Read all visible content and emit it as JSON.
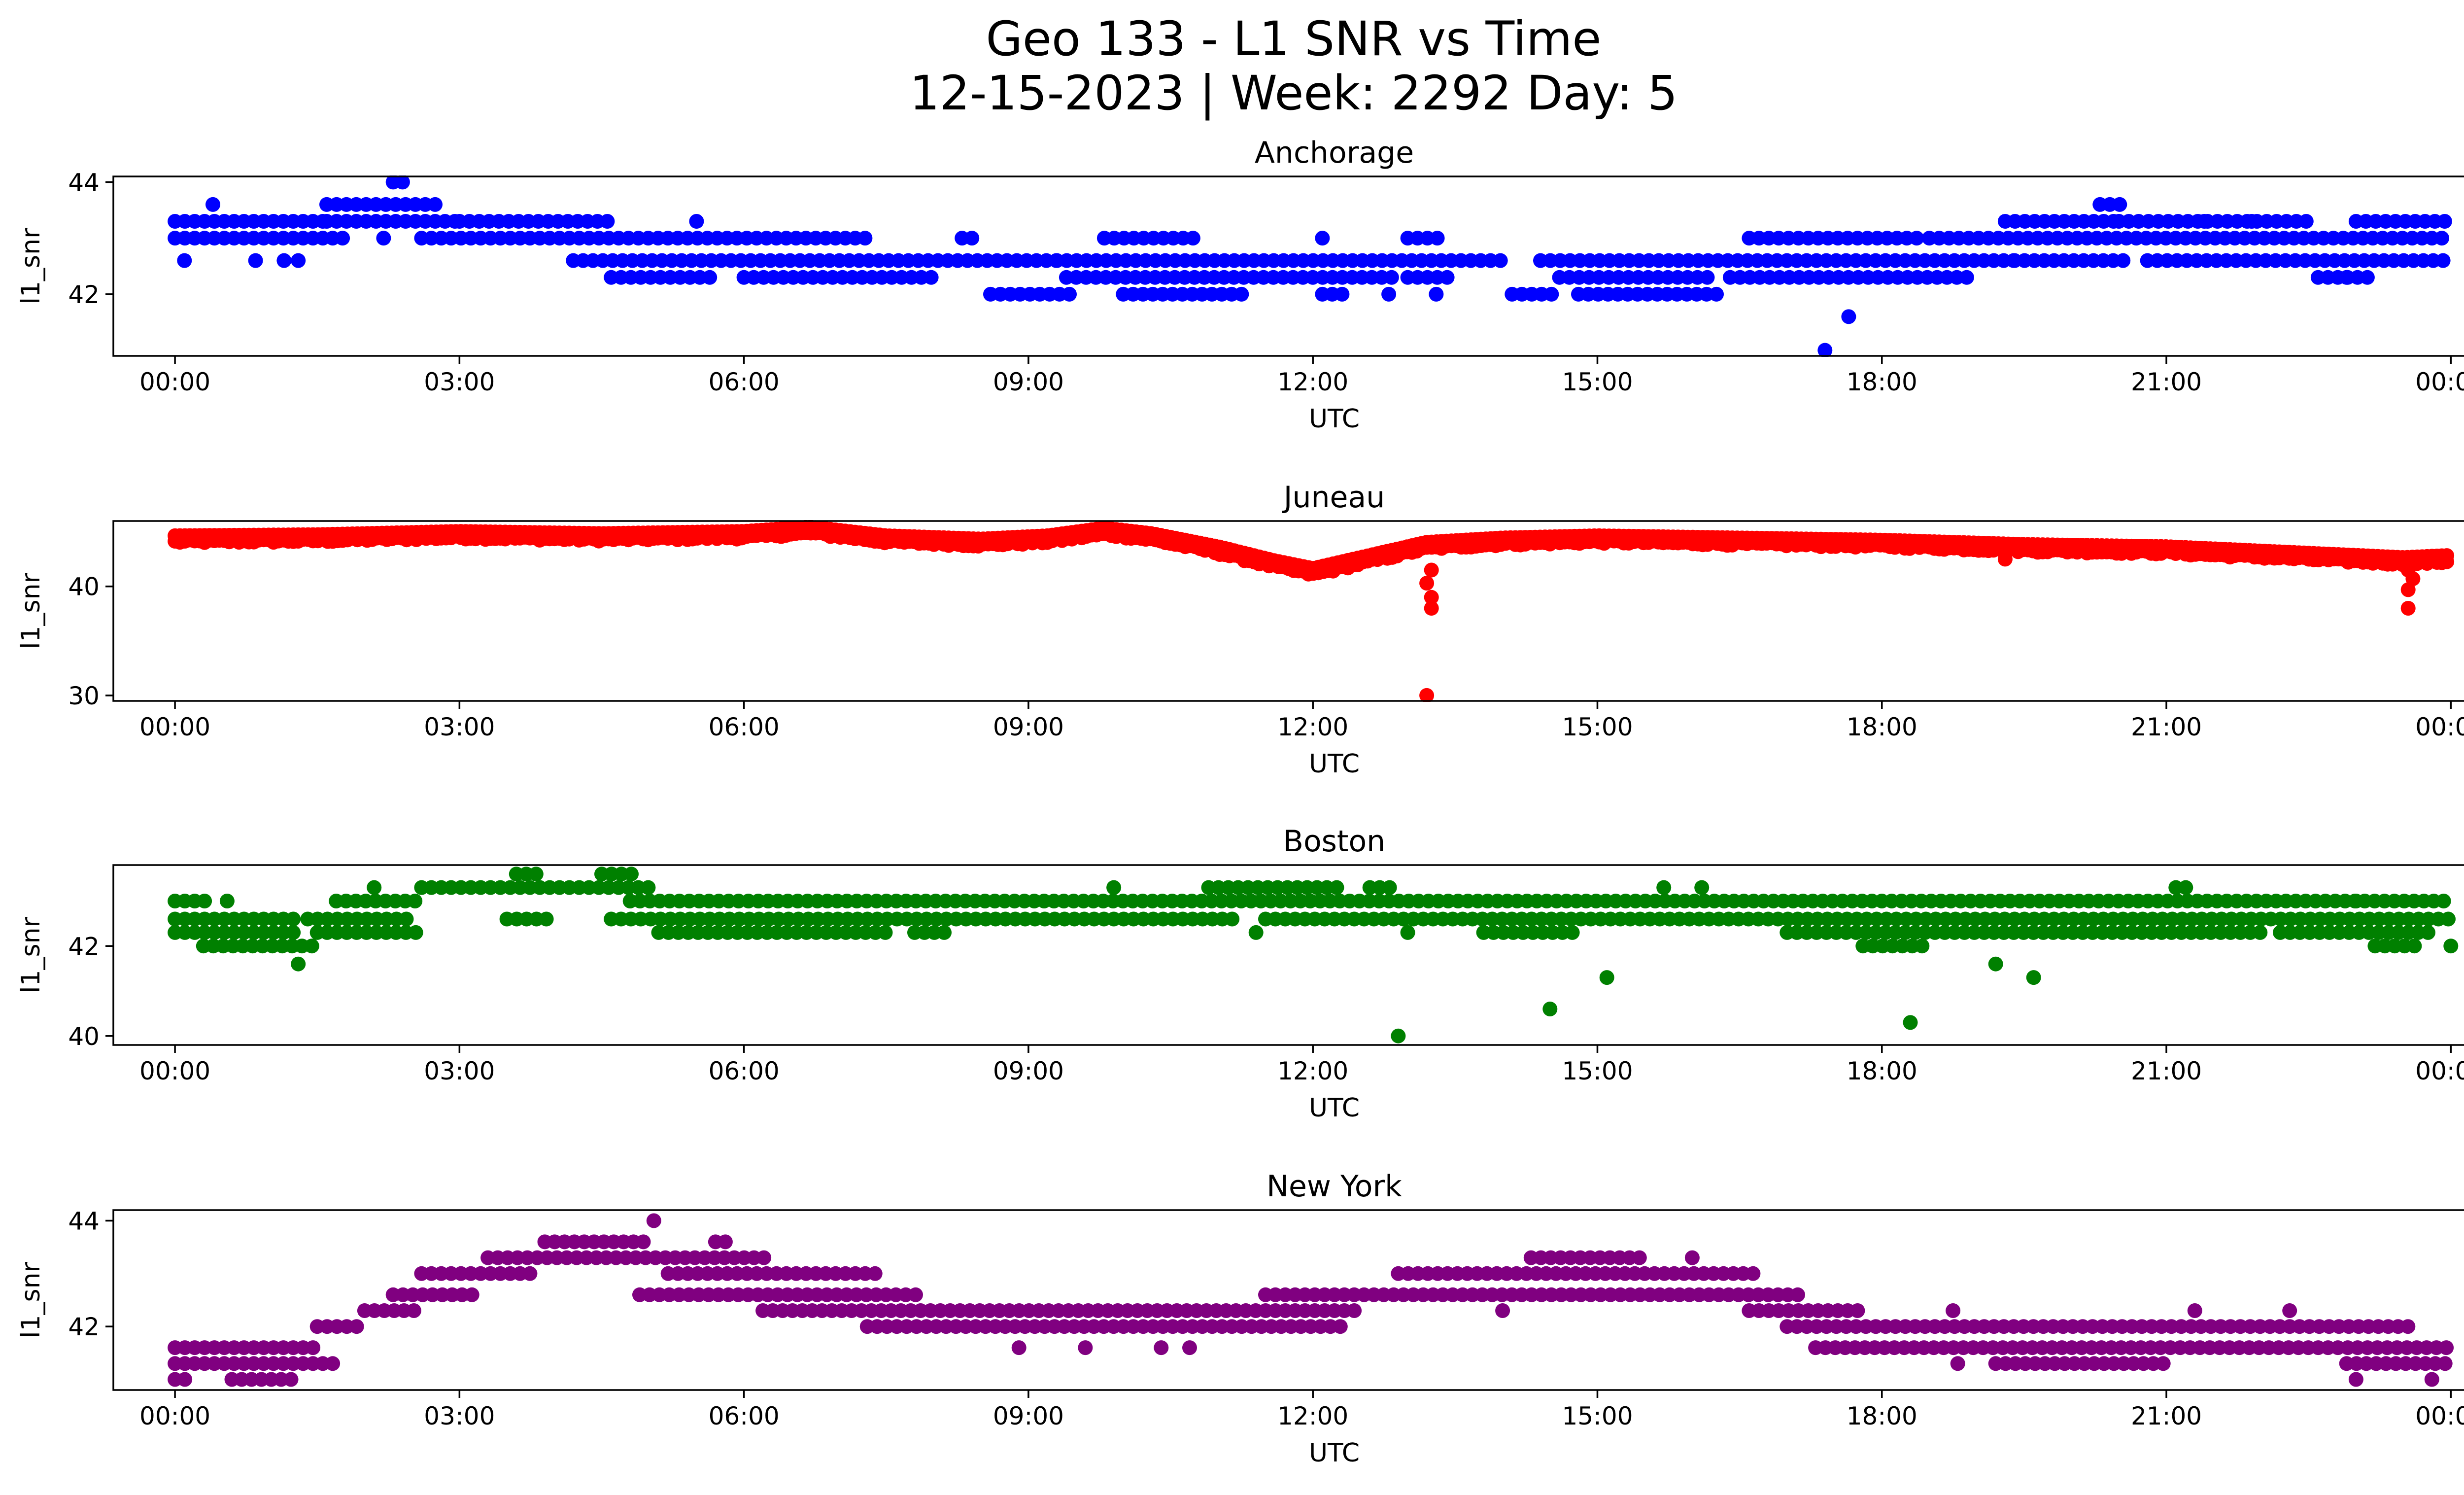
{
  "figure": {
    "title_line1": "Geo 133 - L1 SNR vs Time",
    "title_line2": "12-15-2023 | Week: 2292 Day: 5"
  },
  "chart_data": [
    {
      "type": "scatter",
      "title": "Anchorage",
      "xlabel": "UTC",
      "ylabel": "l1_snr",
      "color": "#0000ff",
      "xlim": [
        -0.65,
        25.1
      ],
      "ylim": [
        40.9,
        44.1
      ],
      "x_ticks": [
        0,
        3,
        6,
        9,
        12,
        15,
        18,
        21,
        24
      ],
      "x_tick_labels": [
        "00:00",
        "03:00",
        "06:00",
        "09:00",
        "12:00",
        "15:00",
        "18:00",
        "21:00",
        "00:00"
      ],
      "y_ticks": [
        42,
        44
      ],
      "y_tick_labels": [
        "42",
        "44"
      ],
      "bands": [
        {
          "y": 43.3,
          "x": [
            [
              0,
              1.6
            ],
            [
              1.6,
              3.0
            ],
            [
              3.0,
              4.6
            ],
            [
              19.3,
              20.5
            ],
            [
              20.5,
              22.5
            ],
            [
              23.0,
              24.0
            ]
          ]
        },
        {
          "y": 43.0,
          "x": [
            [
              0,
              1.8
            ],
            [
              2.6,
              7.3
            ],
            [
              8.3,
              8.5
            ],
            [
              9.8,
              10.8
            ],
            [
              13.0,
              13.4
            ],
            [
              16.6,
              18.4
            ],
            [
              18.5,
              24.0
            ]
          ]
        },
        {
          "y": 42.6,
          "x": [
            [
              4.2,
              9.3
            ],
            [
              9.3,
              14.0
            ],
            [
              14.4,
              19.4
            ],
            [
              19.4,
              20.6
            ],
            [
              20.8,
              24.0
            ]
          ]
        },
        {
          "y": 42.3,
          "x": [
            [
              4.6,
              5.7
            ],
            [
              6.0,
              8.0
            ],
            [
              9.4,
              12.9
            ],
            [
              13.0,
              13.5
            ],
            [
              14.6,
              16.2
            ],
            [
              16.4,
              18.9
            ],
            [
              22.6,
              23.2
            ]
          ]
        },
        {
          "y": 42.0,
          "x": [
            [
              8.6,
              9.5
            ],
            [
              10.0,
              11.3
            ],
            [
              12.1,
              12.4
            ],
            [
              14.1,
              14.6
            ],
            [
              14.8,
              16.3
            ]
          ]
        },
        {
          "y": 43.6,
          "x": [
            [
              1.6,
              2.8
            ],
            [
              20.3,
              20.6
            ]
          ]
        }
      ],
      "points": [
        {
          "x": 0.1,
          "y": 42.6
        },
        {
          "x": 0.4,
          "y": 43.6
        },
        {
          "x": 0.85,
          "y": 42.6
        },
        {
          "x": 1.15,
          "y": 42.6
        },
        {
          "x": 1.3,
          "y": 42.6
        },
        {
          "x": 2.2,
          "y": 43.0
        },
        {
          "x": 2.3,
          "y": 44.0
        },
        {
          "x": 2.4,
          "y": 44.0
        },
        {
          "x": 5.5,
          "y": 43.3
        },
        {
          "x": 12.1,
          "y": 43.0
        },
        {
          "x": 12.8,
          "y": 42.0
        },
        {
          "x": 13.3,
          "y": 42.0
        },
        {
          "x": 17.4,
          "y": 41.0
        },
        {
          "x": 17.65,
          "y": 41.6
        },
        {
          "x": 21.4,
          "y": 43.3
        },
        {
          "x": 21.9,
          "y": 43.3
        },
        {
          "x": 22.9,
          "y": 42.3
        }
      ]
    },
    {
      "type": "scatter",
      "title": "Juneau",
      "xlabel": "UTC",
      "ylabel": "l1_snr",
      "color": "#ff0000",
      "xlim": [
        -0.65,
        25.1
      ],
      "ylim": [
        29.5,
        46.0
      ],
      "x_ticks": [
        0,
        3,
        6,
        9,
        12,
        15,
        18,
        21,
        24
      ],
      "x_tick_labels": [
        "00:00",
        "03:00",
        "06:00",
        "09:00",
        "12:00",
        "15:00",
        "18:00",
        "21:00",
        "00:00"
      ],
      "y_ticks": [
        30,
        40
      ],
      "y_tick_labels": [
        "30",
        "40"
      ],
      "profile": [
        [
          0,
          44.2
        ],
        [
          1.5,
          44.3
        ],
        [
          3,
          44.6
        ],
        [
          4.5,
          44.4
        ],
        [
          6,
          44.6
        ],
        [
          6.7,
          45.0
        ],
        [
          7.5,
          44.2
        ],
        [
          8.5,
          43.9
        ],
        [
          9.2,
          44.2
        ],
        [
          9.8,
          44.9
        ],
        [
          10.3,
          44.4
        ],
        [
          11,
          43.2
        ],
        [
          11.6,
          41.9
        ],
        [
          12.0,
          41.2
        ],
        [
          12.5,
          42.2
        ],
        [
          13.2,
          43.6
        ],
        [
          14,
          44.0
        ],
        [
          15,
          44.2
        ],
        [
          16.5,
          44.0
        ],
        [
          18,
          43.8
        ],
        [
          19.5,
          43.4
        ],
        [
          21,
          43.2
        ],
        [
          22.5,
          42.6
        ],
        [
          23.5,
          42.2
        ],
        [
          24,
          42.4
        ]
      ],
      "points": [
        {
          "x": 13.2,
          "y": 30.0
        },
        {
          "x": 13.25,
          "y": 38.0
        },
        {
          "x": 13.25,
          "y": 39.0
        },
        {
          "x": 13.2,
          "y": 40.3
        },
        {
          "x": 13.25,
          "y": 41.5
        },
        {
          "x": 23.55,
          "y": 38.0
        },
        {
          "x": 23.55,
          "y": 39.7
        },
        {
          "x": 23.6,
          "y": 40.7
        },
        {
          "x": 23.55,
          "y": 41.5
        },
        {
          "x": 19.3,
          "y": 42.5
        }
      ]
    },
    {
      "type": "scatter",
      "title": "Boston",
      "xlabel": "UTC",
      "ylabel": "l1_snr",
      "color": "#008000",
      "xlim": [
        -0.65,
        25.1
      ],
      "ylim": [
        39.8,
        43.8
      ],
      "x_ticks": [
        0,
        3,
        6,
        9,
        12,
        15,
        18,
        21,
        24
      ],
      "x_tick_labels": [
        "00:00",
        "03:00",
        "06:00",
        "09:00",
        "12:00",
        "15:00",
        "18:00",
        "21:00",
        "00:00"
      ],
      "y_ticks": [
        40,
        42
      ],
      "y_tick_labels": [
        "40",
        "42"
      ],
      "bands": [
        {
          "y": 43.0,
          "x": [
            [
              0,
              0.4
            ],
            [
              1.7,
              2.6
            ],
            [
              4.8,
              24.0
            ]
          ]
        },
        {
          "y": 42.6,
          "x": [
            [
              0,
              1.3
            ],
            [
              1.4,
              2.5
            ],
            [
              3.5,
              4.0
            ],
            [
              4.6,
              11.2
            ],
            [
              11.5,
              24.0
            ]
          ]
        },
        {
          "y": 42.3,
          "x": [
            [
              0,
              1.3
            ],
            [
              1.5,
              2.6
            ],
            [
              5.1,
              7.5
            ],
            [
              7.8,
              8.2
            ],
            [
              13.8,
              14.8
            ],
            [
              17.0,
              22.0
            ],
            [
              22.2,
              23.8
            ]
          ]
        },
        {
          "y": 42.0,
          "x": [
            [
              0.3,
              1.5
            ],
            [
              17.8,
              18.5
            ],
            [
              23.2,
              23.7
            ]
          ]
        },
        {
          "y": 43.3,
          "x": [
            [
              2.6,
              5.0
            ],
            [
              10.9,
              12.3
            ],
            [
              12.6,
              12.9
            ],
            [
              21.1,
              21.3
            ]
          ]
        },
        {
          "y": 43.6,
          "x": [
            [
              3.6,
              3.9
            ],
            [
              4.5,
              4.9
            ]
          ]
        }
      ],
      "points": [
        {
          "x": 0.55,
          "y": 43.0
        },
        {
          "x": 1.3,
          "y": 41.6
        },
        {
          "x": 2.1,
          "y": 43.3
        },
        {
          "x": 9.9,
          "y": 43.3
        },
        {
          "x": 11.4,
          "y": 42.3
        },
        {
          "x": 12.9,
          "y": 40.0
        },
        {
          "x": 13.0,
          "y": 42.3
        },
        {
          "x": 14.5,
          "y": 40.6
        },
        {
          "x": 15.1,
          "y": 41.3
        },
        {
          "x": 15.7,
          "y": 43.3
        },
        {
          "x": 16.1,
          "y": 43.3
        },
        {
          "x": 18.3,
          "y": 40.3
        },
        {
          "x": 19.2,
          "y": 41.6
        },
        {
          "x": 19.6,
          "y": 41.3
        },
        {
          "x": 23.0,
          "y": 43.0
        },
        {
          "x": 24.0,
          "y": 42.0
        }
      ]
    },
    {
      "type": "scatter",
      "title": "New York",
      "xlabel": "UTC",
      "ylabel": "l1_snr",
      "color": "#800080",
      "xlim": [
        -0.65,
        25.1
      ],
      "ylim": [
        40.8,
        44.2
      ],
      "x_ticks": [
        0,
        3,
        6,
        9,
        12,
        15,
        18,
        21,
        24
      ],
      "x_tick_labels": [
        "00:00",
        "03:00",
        "06:00",
        "09:00",
        "12:00",
        "15:00",
        "18:00",
        "21:00",
        "00:00"
      ],
      "y_ticks": [
        42,
        44
      ],
      "y_tick_labels": [
        "42",
        "44"
      ],
      "bands": [
        {
          "y": 41.6,
          "x": [
            [
              0,
              1.5
            ],
            [
              17.3,
              24.0
            ]
          ]
        },
        {
          "y": 41.3,
          "x": [
            [
              0,
              1.7
            ],
            [
              19.2,
              21.0
            ],
            [
              22.9,
              24.0
            ]
          ]
        },
        {
          "y": 41.0,
          "x": [
            [
              0,
              0.2
            ],
            [
              0.6,
              1.3
            ]
          ]
        },
        {
          "y": 42.0,
          "x": [
            [
              1.5,
              2.0
            ],
            [
              7.3,
              12.3
            ],
            [
              17.0,
              23.6
            ]
          ]
        },
        {
          "y": 42.3,
          "x": [
            [
              2.0,
              2.6
            ],
            [
              6.2,
              12.5
            ],
            [
              16.6,
              17.8
            ]
          ]
        },
        {
          "y": 42.6,
          "x": [
            [
              2.3,
              3.2
            ],
            [
              4.9,
              7.9
            ],
            [
              11.5,
              17.2
            ]
          ]
        },
        {
          "y": 43.0,
          "x": [
            [
              2.6,
              3.8
            ],
            [
              5.2,
              7.4
            ],
            [
              12.9,
              16.7
            ]
          ]
        },
        {
          "y": 43.3,
          "x": [
            [
              3.3,
              6.3
            ],
            [
              14.3,
              15.5
            ]
          ]
        },
        {
          "y": 43.6,
          "x": [
            [
              3.9,
              5.0
            ],
            [
              5.7,
              5.9
            ]
          ]
        }
      ],
      "points": [
        {
          "x": 5.05,
          "y": 44.0
        },
        {
          "x": 8.9,
          "y": 41.6
        },
        {
          "x": 9.6,
          "y": 41.6
        },
        {
          "x": 10.4,
          "y": 41.6
        },
        {
          "x": 10.7,
          "y": 41.6
        },
        {
          "x": 14.0,
          "y": 42.3
        },
        {
          "x": 16.0,
          "y": 43.3
        },
        {
          "x": 18.8,
          "y": 41.3
        },
        {
          "x": 18.75,
          "y": 42.3
        },
        {
          "x": 21.3,
          "y": 42.3
        },
        {
          "x": 22.3,
          "y": 42.3
        },
        {
          "x": 23.0,
          "y": 41.0
        },
        {
          "x": 23.8,
          "y": 41.0
        }
      ]
    }
  ]
}
